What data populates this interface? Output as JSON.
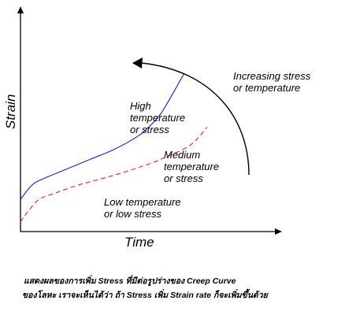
{
  "chart_data": {
    "type": "line",
    "title": "",
    "xlabel": "Time",
    "ylabel": "Strain",
    "grid": false,
    "legend": "none",
    "xlim": [
      0,
      100
    ],
    "ylim": [
      0,
      100
    ],
    "series": [
      {
        "label": "High\ntemperature\nor stress",
        "color": "#0000ff",
        "dash": "solid",
        "x": [
          0,
          5,
          10,
          20,
          30,
          40,
          50,
          55,
          60,
          65,
          70
        ],
        "y": [
          20,
          29,
          33,
          39,
          45,
          51,
          59,
          65,
          73,
          85,
          98
        ]
      },
      {
        "label": "Medium\ntemperature\nor stress",
        "color": "#ff0000",
        "dash": "dashed",
        "x": [
          0,
          3,
          8,
          15,
          25,
          40,
          55,
          65,
          72,
          76,
          80
        ],
        "y": [
          6,
          12,
          20,
          24,
          29,
          35,
          42,
          48,
          53,
          58,
          65
        ]
      }
    ],
    "annotations": [
      {
        "text": "Low temperature\nor low  stress"
      },
      {
        "text": "Increasing stress\nor  temperature"
      }
    ]
  },
  "caption": {
    "line1": "แสดงผลของการเพิ่ม Stress  ที่มีต่อรูปร่างของ Creep  Curve",
    "line2": "ของโลหะ  เราจะเห็นได้ว่า ถ้า Stress  เพิ่ม  Strain rate  ก็จะเพิ่มขึ้นด้วย"
  }
}
